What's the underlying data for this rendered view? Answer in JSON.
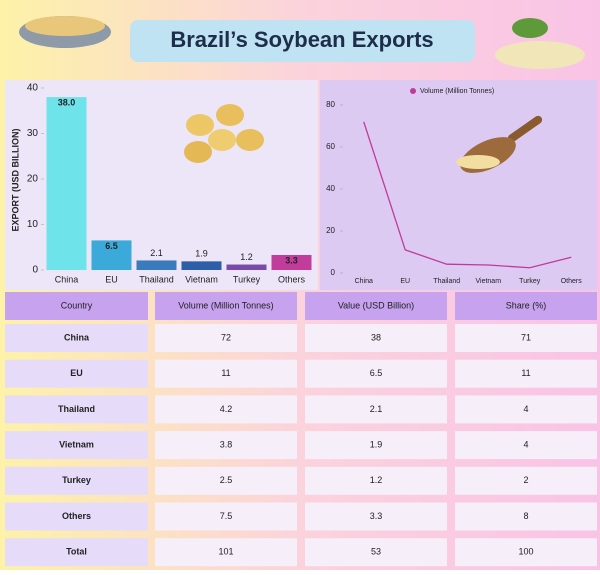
{
  "title": "Brazil’s Soybean Exports",
  "chart_data": [
    {
      "type": "bar",
      "ylabel": "EXPORT (USD BILLION)",
      "categories": [
        "China",
        "EU",
        "Thailand",
        "Vietnam",
        "Turkey",
        "Others"
      ],
      "values": [
        38.0,
        6.5,
        2.1,
        1.9,
        1.2,
        3.3
      ],
      "value_labels": [
        "38.0",
        "6.5",
        "2.1",
        "1.9",
        "1.2",
        "3.3"
      ],
      "colors": [
        "#6fe3ea",
        "#3ba9d9",
        "#3a7bbb",
        "#2f5ea8",
        "#7b4aa8",
        "#c23c9c"
      ],
      "ylim": [
        0,
        40
      ],
      "yticks": [
        0,
        10,
        20,
        30,
        40
      ]
    },
    {
      "type": "line",
      "categories": [
        "China",
        "EU",
        "Thailand",
        "Vietnam",
        "Turkey",
        "Others"
      ],
      "series": [
        {
          "name": "Volume (Million Tonnes)",
          "color": "#c2399c",
          "values": [
            72,
            11,
            4.2,
            3.8,
            2.5,
            7.5
          ]
        }
      ],
      "ylim": [
        0,
        80
      ],
      "yticks": [
        0,
        20,
        40,
        60,
        80
      ]
    }
  ],
  "table": {
    "header": [
      "Country",
      "Volume (Million Tonnes)",
      "Value (USD Billion)",
      "Share (%)"
    ],
    "rows": [
      [
        "China",
        72,
        38,
        71
      ],
      [
        "EU",
        11,
        6.5,
        11
      ],
      [
        "Thailand",
        4.2,
        2.1,
        4
      ],
      [
        "Vietnam",
        3.8,
        1.9,
        4
      ],
      [
        "Turkey",
        2.5,
        1.2,
        2
      ],
      [
        "Others",
        7.5,
        3.3,
        8
      ],
      [
        "Total",
        101,
        53,
        100
      ]
    ]
  }
}
